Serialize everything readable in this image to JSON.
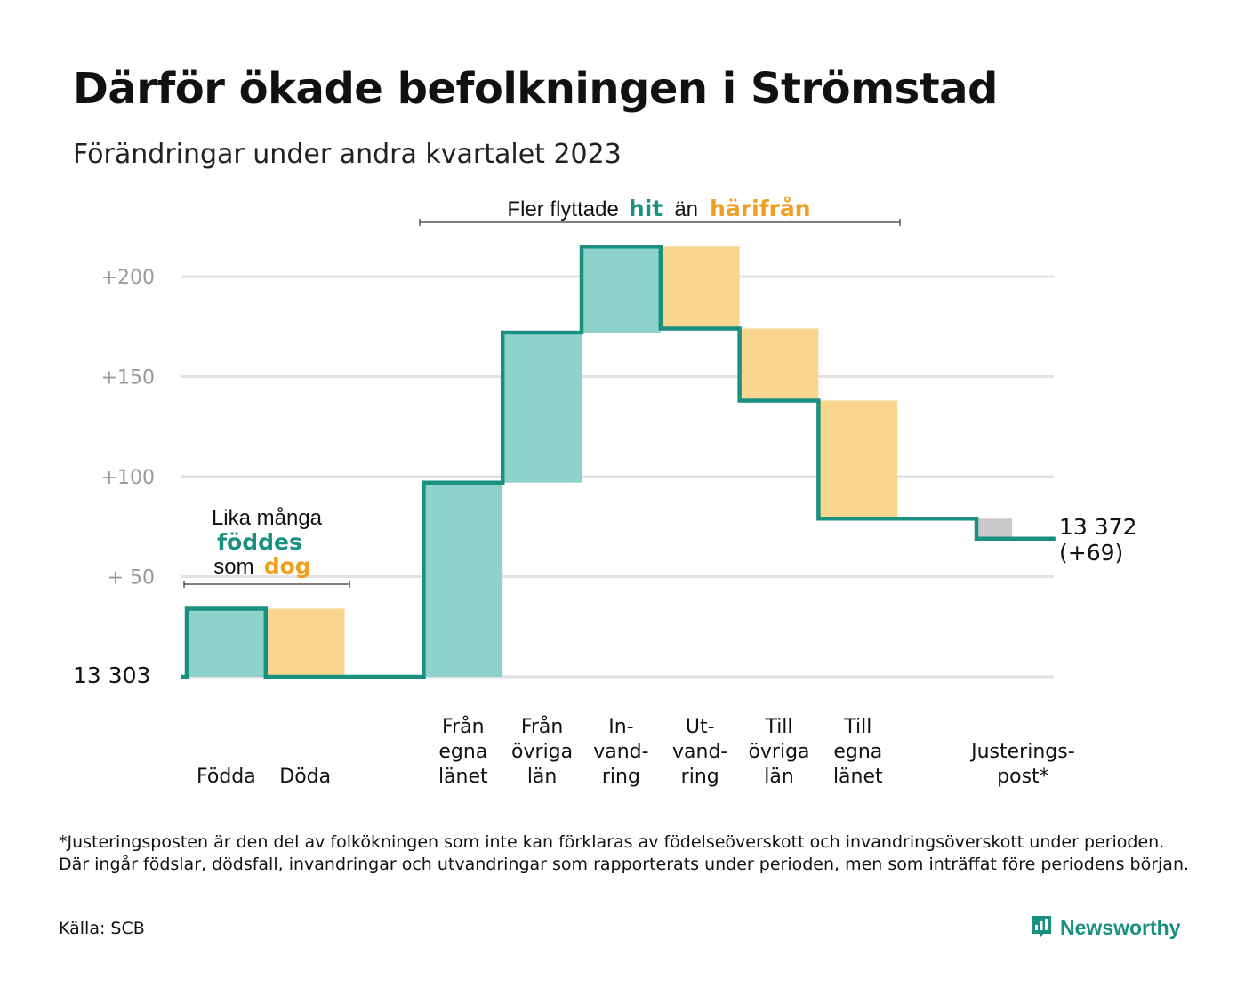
{
  "title": "Därför ökade befolkningen i Strömstad",
  "subtitle": "Förändringar under andra kvartalet 2023",
  "annotation_top": {
    "pre": "Fler flyttade",
    "hit": "hit",
    "mid": "än",
    "harifran": "härifrån"
  },
  "annotation_left": {
    "line1": "Lika många",
    "fodde": "föddes",
    "som": "som",
    "dog": "dog"
  },
  "colors": {
    "increase": "#8dd3c9",
    "decrease": "#fad58e",
    "adjustment": "#c9c9c9",
    "step_line": "#1a9080",
    "accent_teal": "#1a9080",
    "accent_orange": "#f0a020",
    "grid": "#e2e2e2"
  },
  "chart_data": {
    "type": "waterfall",
    "title": "Därför ökade befolkningen i Strömstad",
    "subtitle": "Förändringar under andra kvartalet 2023",
    "start_label": "13  303",
    "start_value": 13303,
    "yaxis": {
      "ticks": [
        "+200",
        "+150",
        "+100",
        "+  50"
      ],
      "tick_values": [
        200,
        150,
        100,
        50
      ],
      "ylim": [
        0,
        215
      ],
      "grid": true
    },
    "steps": [
      {
        "label_lines": [
          "Födda"
        ],
        "delta": 34,
        "kind": "increase"
      },
      {
        "label_lines": [
          "Döda"
        ],
        "delta": -34,
        "kind": "decrease"
      },
      {
        "label_lines": [],
        "delta": 0,
        "kind": "gap"
      },
      {
        "label_lines": [
          "Från",
          "egna",
          "länet"
        ],
        "delta": 97,
        "kind": "increase"
      },
      {
        "label_lines": [
          "Från",
          "övriga",
          "län"
        ],
        "delta": 75,
        "kind": "increase"
      },
      {
        "label_lines": [
          "In-",
          "vand-",
          "ring"
        ],
        "delta": 43,
        "kind": "increase"
      },
      {
        "label_lines": [
          "Ut-",
          "vand-",
          "ring"
        ],
        "delta": -41,
        "kind": "decrease"
      },
      {
        "label_lines": [
          "Till",
          "övriga",
          "län"
        ],
        "delta": -36,
        "kind": "decrease"
      },
      {
        "label_lines": [
          "Till",
          "egna",
          "länet"
        ],
        "delta": -59,
        "kind": "decrease"
      },
      {
        "label_lines": [],
        "delta": 0,
        "kind": "gap"
      },
      {
        "label_lines": [
          "Justerings-",
          "post*"
        ],
        "delta": -10,
        "kind": "adjustment"
      }
    ],
    "end_label": [
      "13 372",
      "(+69)"
    ],
    "end_value": 13372,
    "end_change": 69
  },
  "footnote": "*Justeringsposten är den del av folkökningen som inte kan förklaras av födelseöverskott och invandringsöverskott under perioden. Där ingår födslar, dödsfall, invandringar och utvandringar som rapporterats under perioden, men som inträffat före periodens början.",
  "source": "Källa: SCB",
  "brand": {
    "name": "Newsworthy",
    "icon": "newsworthy-logo-icon"
  }
}
